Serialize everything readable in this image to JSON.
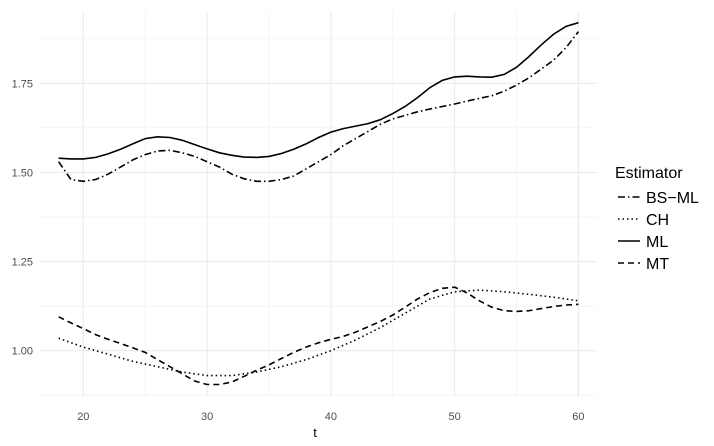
{
  "chart_data": {
    "type": "line",
    "xlabel": "t",
    "ylabel": "",
    "xlim": [
      16.5,
      61.5
    ],
    "ylim": [
      0.87,
      1.95
    ],
    "x_ticks": [
      20,
      30,
      40,
      50,
      60
    ],
    "y_ticks": [
      1.0,
      1.25,
      1.5,
      1.75
    ],
    "x_tick_labels": [
      "20",
      "30",
      "40",
      "50",
      "60"
    ],
    "y_tick_labels": [
      "1.00",
      "1.25",
      "1.50",
      "1.75"
    ],
    "grid": true,
    "legend": {
      "title": "Estimator",
      "placement": "right",
      "entries": [
        "BS−ML",
        "CH",
        "ML",
        "MT"
      ]
    },
    "series": [
      {
        "name": "BS−ML",
        "dash": "dotdash",
        "x": [
          18,
          19,
          20,
          21,
          22,
          23,
          24,
          25,
          26,
          27,
          28,
          29,
          30,
          31,
          32,
          33,
          34,
          35,
          36,
          37,
          38,
          39,
          40,
          41,
          42,
          43,
          44,
          45,
          46,
          47,
          48,
          49,
          50,
          51,
          52,
          53,
          54,
          55,
          56,
          57,
          58,
          59,
          60
        ],
        "y": [
          1.53,
          1.48,
          1.475,
          1.48,
          1.495,
          1.515,
          1.535,
          1.55,
          1.56,
          1.562,
          1.555,
          1.545,
          1.53,
          1.515,
          1.495,
          1.482,
          1.475,
          1.475,
          1.48,
          1.49,
          1.51,
          1.53,
          1.55,
          1.575,
          1.595,
          1.615,
          1.635,
          1.65,
          1.66,
          1.67,
          1.678,
          1.685,
          1.692,
          1.7,
          1.708,
          1.715,
          1.728,
          1.745,
          1.765,
          1.79,
          1.815,
          1.85,
          1.895
        ]
      },
      {
        "name": "CH",
        "dash": "dotted",
        "x": [
          18,
          20,
          22,
          24,
          26,
          28,
          30,
          32,
          34,
          36,
          38,
          40,
          42,
          44,
          46,
          48,
          50,
          52,
          54,
          56,
          58,
          60
        ],
        "y": [
          1.035,
          1.01,
          0.99,
          0.97,
          0.955,
          0.94,
          0.93,
          0.93,
          0.94,
          0.955,
          0.975,
          1.0,
          1.03,
          1.065,
          1.105,
          1.145,
          1.165,
          1.17,
          1.165,
          1.158,
          1.15,
          1.14
        ]
      },
      {
        "name": "ML",
        "dash": "solid",
        "x": [
          18,
          19,
          20,
          21,
          22,
          23,
          24,
          25,
          26,
          27,
          28,
          29,
          30,
          31,
          32,
          33,
          34,
          35,
          36,
          37,
          38,
          39,
          40,
          41,
          42,
          43,
          44,
          45,
          46,
          47,
          48,
          49,
          50,
          51,
          52,
          53,
          54,
          55,
          56,
          57,
          58,
          59,
          60
        ],
        "y": [
          1.54,
          1.538,
          1.538,
          1.542,
          1.552,
          1.565,
          1.58,
          1.595,
          1.6,
          1.598,
          1.59,
          1.578,
          1.566,
          1.555,
          1.548,
          1.543,
          1.542,
          1.545,
          1.553,
          1.565,
          1.58,
          1.598,
          1.613,
          1.623,
          1.63,
          1.637,
          1.648,
          1.665,
          1.685,
          1.71,
          1.738,
          1.758,
          1.768,
          1.77,
          1.768,
          1.767,
          1.775,
          1.795,
          1.825,
          1.858,
          1.888,
          1.91,
          1.92
        ]
      },
      {
        "name": "MT",
        "dash": "dashed",
        "x": [
          18,
          19,
          20,
          21,
          22,
          23,
          24,
          25,
          26,
          27,
          28,
          29,
          30,
          31,
          32,
          33,
          34,
          35,
          36,
          37,
          38,
          39,
          40,
          41,
          42,
          43,
          44,
          45,
          46,
          47,
          48,
          49,
          50,
          51,
          52,
          53,
          54,
          55,
          56,
          57,
          58,
          59,
          60
        ],
        "y": [
          1.095,
          1.078,
          1.062,
          1.045,
          1.032,
          1.02,
          1.008,
          0.995,
          0.975,
          0.955,
          0.935,
          0.915,
          0.905,
          0.905,
          0.912,
          0.928,
          0.945,
          0.96,
          0.978,
          0.995,
          1.01,
          1.022,
          1.032,
          1.04,
          1.052,
          1.067,
          1.082,
          1.1,
          1.122,
          1.145,
          1.163,
          1.175,
          1.178,
          1.162,
          1.14,
          1.122,
          1.112,
          1.11,
          1.112,
          1.118,
          1.124,
          1.128,
          1.13
        ]
      }
    ]
  }
}
